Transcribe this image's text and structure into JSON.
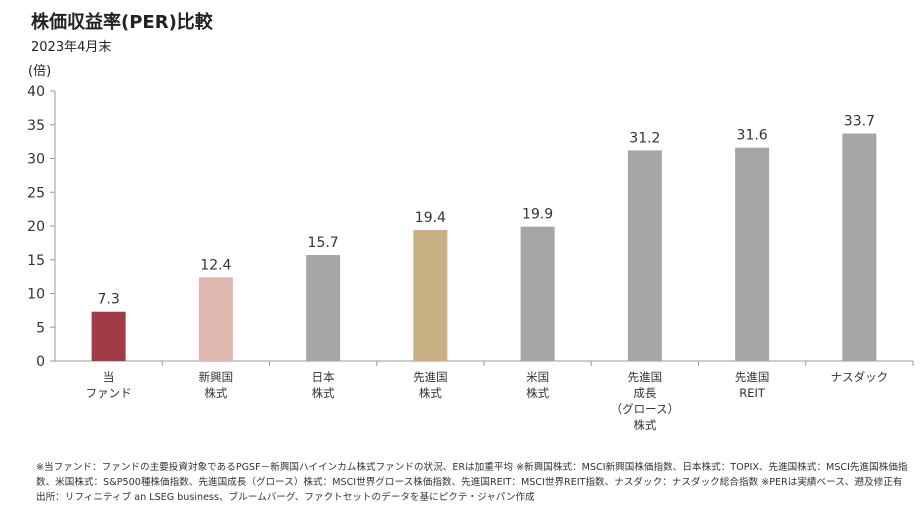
{
  "chart_data": {
    "type": "bar",
    "title": "株価収益率(PER)比較",
    "subtitle": "2023年4月末",
    "ylabel": "(倍)",
    "xlabel": "",
    "ylim": [
      0,
      40
    ],
    "yticks": [
      0,
      5,
      10,
      15,
      20,
      25,
      30,
      35,
      40
    ],
    "grid": false,
    "categories": [
      [
        "当",
        "ファンド"
      ],
      [
        "新興国",
        "株式"
      ],
      [
        "日本",
        "株式"
      ],
      [
        "先進国",
        "株式"
      ],
      [
        "米国",
        "株式"
      ],
      [
        "先進国",
        "成長",
        "（グロース）",
        "株式"
      ],
      [
        "先進国",
        "REIT"
      ],
      [
        "ナスダック"
      ]
    ],
    "values": [
      7.3,
      12.4,
      15.7,
      19.4,
      19.9,
      31.2,
      31.6,
      33.7
    ],
    "colors": [
      "#a23b45",
      "#e0b8b0",
      "#a6a6a6",
      "#c8b083",
      "#a6a6a6",
      "#a6a6a6",
      "#a6a6a6",
      "#a6a6a6"
    ]
  },
  "notes": [
    "※当ファンド：ファンドの主要投資対象であるPGSF－新興国ハイインカム株式ファンドの状況、ERは加重平均 ※新興国株式：MSCI新興国株価指数、日本株式：TOPIX、先進国株式：MSCI先進国株価指",
    "数、米国株式：S&P500種株価指数、先進国成長（グロース）株式：MSCI世界グロース株価指数、先進国REIT：MSCI世界REIT指数、ナスダック：ナスダック総合指数 ※PERは実績ベース、遡及修正有",
    "出所：リフィニティブ an LSEG business、ブルームバーグ、ファクトセットのデータを基にピクテ・ジャパン作成"
  ]
}
